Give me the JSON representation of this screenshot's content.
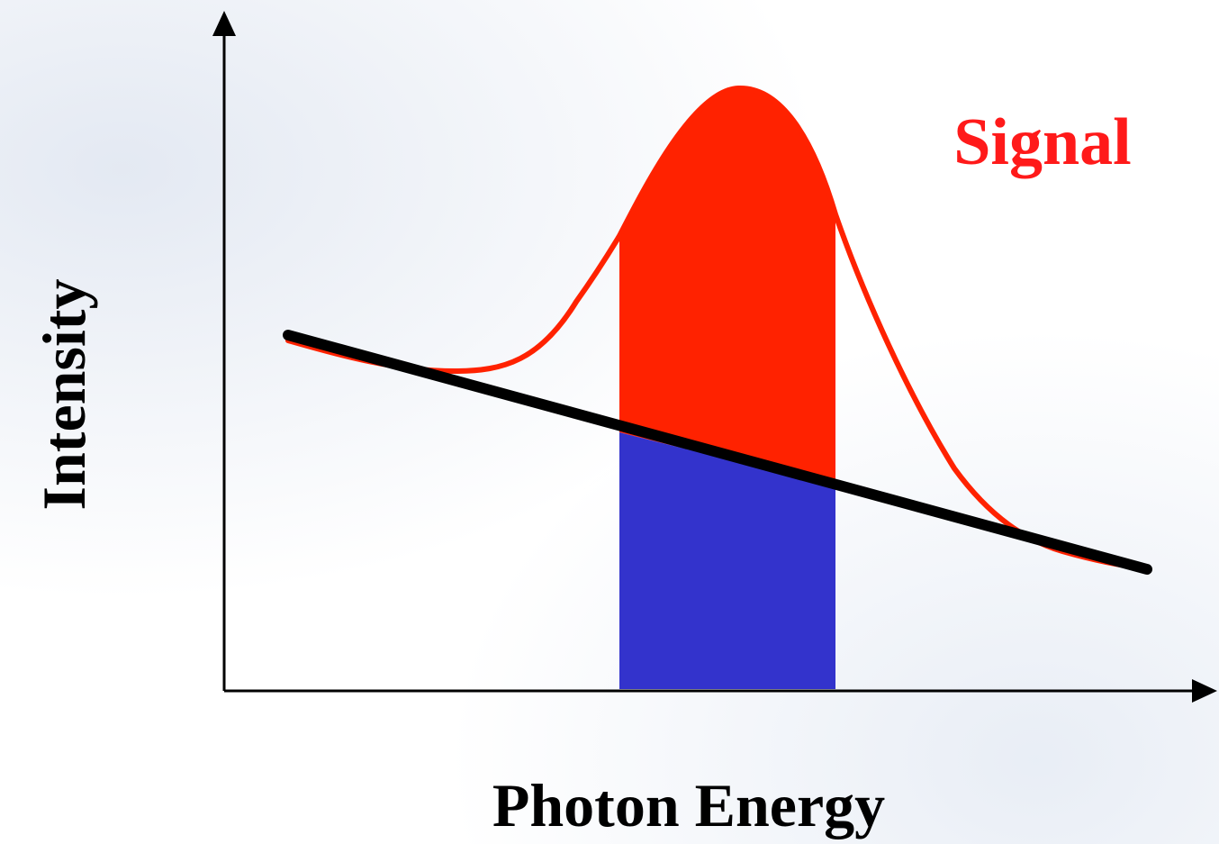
{
  "diagram": {
    "x_axis_title": "Photon Energy",
    "y_axis_title": "Intensity",
    "signal_label": "Signal"
  },
  "colors": {
    "signal": "#ff2200",
    "background_band": "#3333cc",
    "baseline": "#000000",
    "axes": "#000000",
    "signal_label": "#ff1a1a"
  }
}
